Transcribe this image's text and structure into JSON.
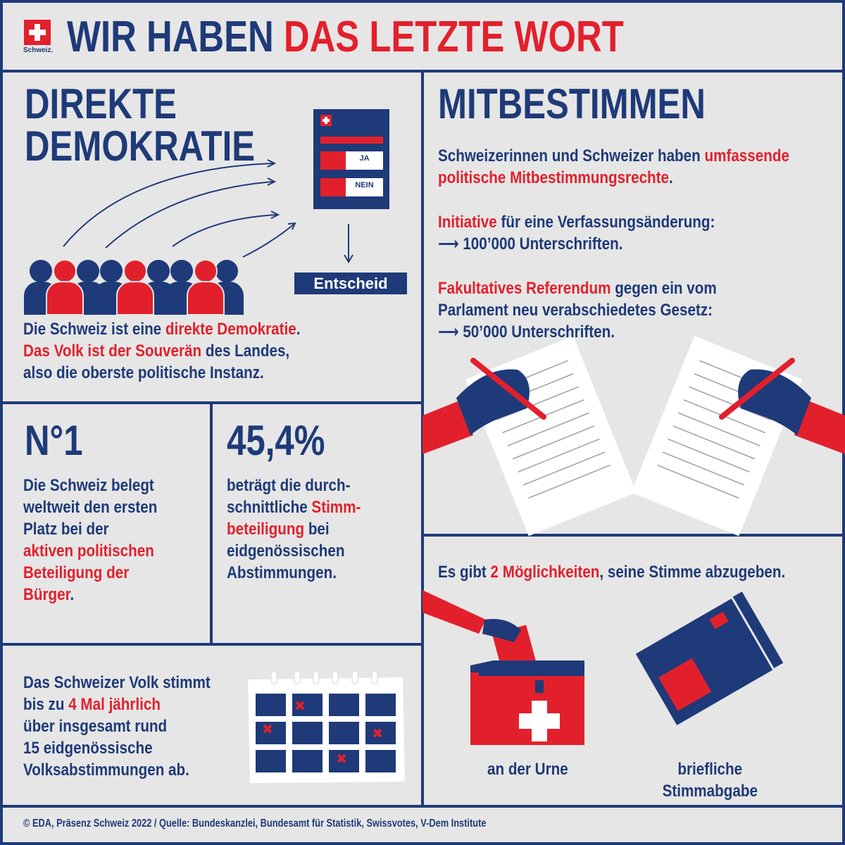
{
  "header": {
    "logo_label": "Schweiz.",
    "title_part1": "WIR HABEN",
    "title_part2": "DAS LETZTE WORT"
  },
  "direct_democracy": {
    "title_lines": [
      "DIREKTE",
      "DEMOKRATIE"
    ],
    "ballot_yes": "JA",
    "ballot_no": "NEIN",
    "decision": "Entscheid",
    "description": [
      [
        {
          "text": "Die Schweiz ist eine "
        },
        {
          "text": "direkte Demokratie",
          "emphasis": true
        },
        {
          "text": "."
        }
      ],
      [
        {
          "text": "Das Volk ist der Souverän",
          "emphasis": true
        },
        {
          "text": " des Landes,"
        }
      ],
      [
        {
          "text": "also die oberste politische Instanz."
        }
      ]
    ]
  },
  "participation": {
    "title": "MITBESTIMMEN",
    "intro": [
      [
        {
          "text": "Schweizerinnen und Schweizer haben "
        },
        {
          "text": "umfassende",
          "emphasis": true
        }
      ],
      [
        {
          "text": "politische Mitbestimmungsrechte",
          "emphasis": true
        },
        {
          "text": "."
        }
      ]
    ],
    "initiative": [
      [
        {
          "text": "Initiative",
          "emphasis": true
        },
        {
          "text": " für eine Verfassungsänderung:"
        }
      ],
      [
        {
          "text": "⟶ 100’000 Unterschriften."
        }
      ]
    ],
    "referendum": [
      [
        {
          "text": "Fakultatives Referendum",
          "emphasis": true
        },
        {
          "text": " gegen ein vom"
        }
      ],
      [
        {
          "text": "Parlament neu verabschiedetes Gesetz:"
        }
      ],
      [
        {
          "text": "⟶ 50’000 Unterschriften."
        }
      ]
    ]
  },
  "rank": {
    "headline": "N°1",
    "text": [
      [
        {
          "text": "Die Schweiz belegt"
        }
      ],
      [
        {
          "text": "weltweit den ersten"
        }
      ],
      [
        {
          "text": "Platz bei der"
        }
      ],
      [
        {
          "text": "aktiven politischen",
          "emphasis": true
        }
      ],
      [
        {
          "text": "Beteiligung der",
          "emphasis": true
        }
      ],
      [
        {
          "text": "Bürger",
          "emphasis": true
        },
        {
          "text": "."
        }
      ]
    ]
  },
  "turnout": {
    "headline": "45,4%",
    "text": [
      [
        {
          "text": "beträgt die durch-"
        }
      ],
      [
        {
          "text": "schnittliche "
        },
        {
          "text": "Stimm-",
          "emphasis": true
        }
      ],
      [
        {
          "text": "beteiligung",
          "emphasis": true
        },
        {
          "text": " bei"
        }
      ],
      [
        {
          "text": "eidgenössischen"
        }
      ],
      [
        {
          "text": "Abstimmungen."
        }
      ]
    ]
  },
  "frequency": {
    "text": [
      [
        {
          "text": "Das Schweizer Volk stimmt"
        }
      ],
      [
        {
          "text": "bis zu "
        },
        {
          "text": "4 Mal jährlich",
          "emphasis": true
        }
      ],
      [
        {
          "text": "über insgesamt rund"
        }
      ],
      [
        {
          "text": "15 eidgenössische"
        }
      ],
      [
        {
          "text": "Volksabstimmungen ab."
        }
      ]
    ]
  },
  "voting_methods": {
    "intro": [
      [
        {
          "text": "Es gibt "
        },
        {
          "text": "2 Möglichkeiten",
          "emphasis": true
        },
        {
          "text": ", seine Stimme abzugeben."
        }
      ]
    ],
    "urn_label": "an der Urne",
    "mail_label_lines": [
      "briefliche",
      "Stimmabgabe"
    ]
  },
  "footer": {
    "source": "© EDA, Präsenz Schweiz 2022 / Quelle: Bundeskanzlei, Bundesamt für Statistik, Swissvotes, V-Dem Institute"
  }
}
